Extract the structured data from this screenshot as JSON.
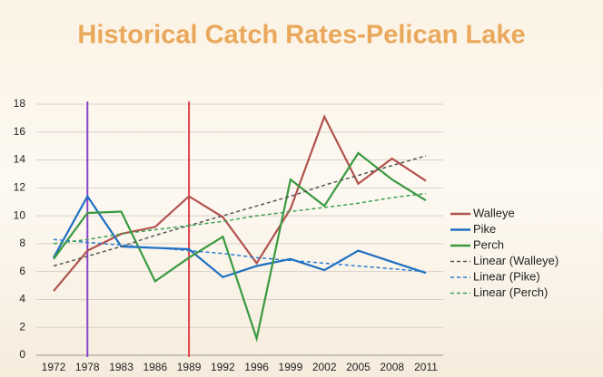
{
  "chart_data": {
    "type": "line",
    "title": "Historical Catch Rates-Pelican Lake",
    "categories": [
      "1972",
      "1978",
      "1983",
      "1986",
      "1989",
      "1992",
      "1996",
      "1999",
      "2002",
      "2005",
      "2008",
      "2011"
    ],
    "series": [
      {
        "name": "Walleye",
        "color": "#b0524e",
        "values": [
          4.6,
          7.5,
          8.7,
          9.2,
          11.4,
          9.9,
          6.6,
          10.5,
          17.1,
          12.3,
          14.1,
          12.5
        ]
      },
      {
        "name": "Pike",
        "color": "#1f6fc0",
        "values": [
          7.0,
          11.4,
          7.8,
          7.7,
          7.6,
          5.6,
          6.4,
          6.9,
          6.1,
          7.5,
          6.7,
          5.9
        ]
      },
      {
        "name": "Perch",
        "color": "#3a9a40",
        "values": [
          6.9,
          10.2,
          10.3,
          5.3,
          7.0,
          8.5,
          1.2,
          12.6,
          10.7,
          14.5,
          12.6,
          11.1
        ]
      },
      {
        "name": "Linear (Walleye)",
        "color": "#555555",
        "dashed": true,
        "values": [
          6.4,
          7.1,
          7.8,
          8.6,
          9.3,
          10.0,
          10.7,
          11.4,
          12.2,
          12.9,
          13.6,
          14.3
        ]
      },
      {
        "name": "Linear (Pike)",
        "color": "#2a7bd0",
        "dashed": true,
        "values": [
          8.3,
          8.1,
          7.9,
          7.7,
          7.5,
          7.3,
          7.0,
          6.8,
          6.6,
          6.4,
          6.2,
          6.0
        ]
      },
      {
        "name": "Linear (Perch)",
        "color": "#3aa050",
        "dashed": true,
        "values": [
          8.0,
          8.3,
          8.7,
          9.0,
          9.3,
          9.6,
          10.0,
          10.3,
          10.6,
          10.9,
          11.3,
          11.6
        ]
      }
    ],
    "markers": [
      {
        "at": "1978",
        "color": "#8a44cc"
      },
      {
        "at": "1989",
        "color": "#e0404a"
      }
    ],
    "ylim": [
      0,
      18
    ],
    "yticks": [
      0,
      2,
      4,
      6,
      8,
      10,
      12,
      14,
      16,
      18
    ],
    "grid": true,
    "legend": "right"
  }
}
